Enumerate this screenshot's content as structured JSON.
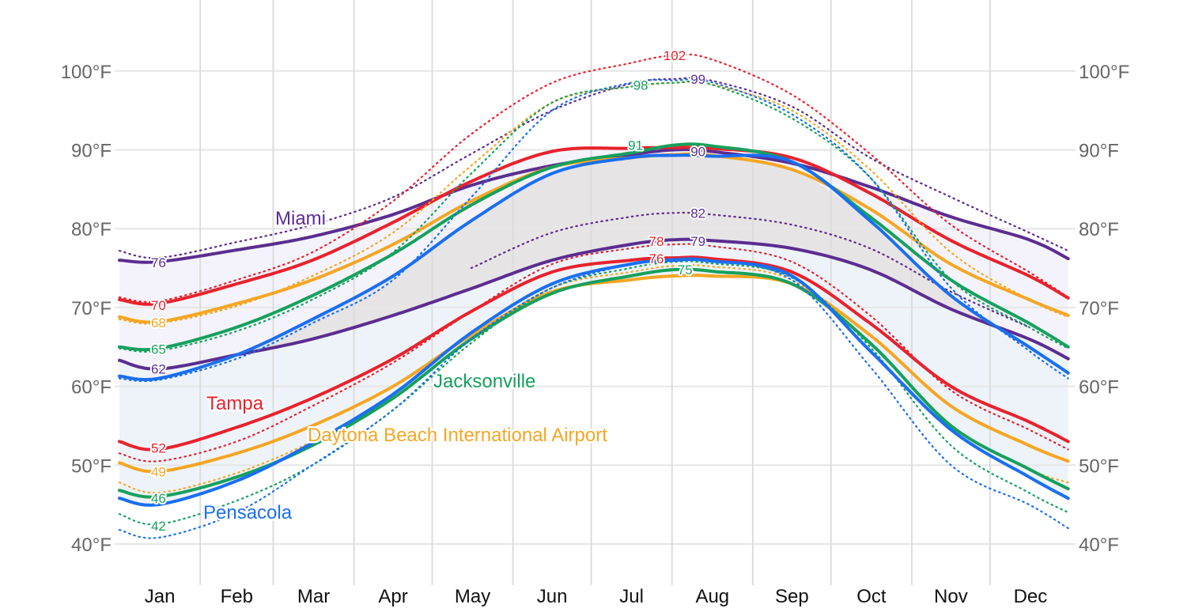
{
  "chart_data": {
    "type": "line",
    "title": "",
    "xlabel": "",
    "ylabel": "",
    "ylim": [
      40,
      100
    ],
    "y_unit": "°F",
    "yticks": [
      "40°F",
      "50°F",
      "60°F",
      "70°F",
      "80°F",
      "90°F",
      "100°F"
    ],
    "ytick_values": [
      40,
      50,
      60,
      70,
      80,
      90,
      100
    ],
    "months": [
      "Jan",
      "Feb",
      "Mar",
      "Apr",
      "May",
      "Jun",
      "Jul",
      "Aug",
      "Sep",
      "Oct",
      "Nov",
      "Dec"
    ],
    "grid": true,
    "legend": "inline labels",
    "x_sample_days": [
      0,
      15,
      45,
      74,
      105,
      135,
      166,
      196,
      213,
      227,
      258,
      288,
      319,
      349,
      364
    ],
    "series": [
      {
        "name": "Miami",
        "color": "#5b2d90",
        "label_text": "Miami",
        "avg_high": [
          76.0,
          75.8,
          77.3,
          79.0,
          81.8,
          85.5,
          88.0,
          89.4,
          90.0,
          89.8,
          88.3,
          85.3,
          81.5,
          78.6,
          76.2
        ],
        "avg_low": [
          63.3,
          62.2,
          64.0,
          66.0,
          69.0,
          72.4,
          76.0,
          78.0,
          78.6,
          78.5,
          77.5,
          74.8,
          69.8,
          66.0,
          63.5
        ],
        "p90_high": [
          77.2,
          76.3,
          78.3,
          80.5,
          84.0,
          89.5,
          95.0,
          98.4,
          99.0,
          98.8,
          95.5,
          89.0,
          84.0,
          79.5,
          77.2
        ],
        "p90_low": [
          null,
          null,
          null,
          null,
          null,
          75.0,
          79.5,
          81.5,
          82.0,
          81.8,
          80.5,
          77.5,
          72.0,
          67.5,
          null
        ],
        "labels": {
          "high_start": "76",
          "low_start": "62",
          "high_peak": "90",
          "low_peak": "79",
          "p90_high_peak": "99",
          "p90_low_peak": "82"
        }
      },
      {
        "name": "Tampa",
        "color": "#e8222d",
        "label_text": "Tampa",
        "avg_high": [
          71.0,
          70.5,
          73.0,
          76.0,
          80.8,
          86.0,
          89.8,
          90.2,
          90.3,
          90.2,
          89.0,
          84.5,
          78.5,
          74.0,
          71.2
        ],
        "avg_low": [
          53.0,
          52.0,
          54.8,
          58.5,
          63.5,
          69.5,
          74.5,
          76.0,
          76.3,
          76.2,
          74.5,
          68.0,
          60.0,
          55.5,
          53.0
        ],
        "p90_high": [
          71.3,
          70.8,
          73.5,
          77.0,
          83.5,
          92.0,
          98.5,
          101.0,
          102.0,
          101.5,
          97.0,
          89.5,
          80.5,
          74.5,
          71.3
        ],
        "p10_low": [
          51.5,
          50.5,
          53.0,
          57.5,
          63.0,
          69.5,
          75.5,
          77.5,
          78.0,
          77.8,
          75.8,
          69.0,
          59.5,
          54.5,
          52.0
        ],
        "labels": {
          "high_start": "70",
          "low_start": "52",
          "p90_high_peak": "102",
          "low_peak": "78",
          "low_peak2": "76"
        }
      },
      {
        "name": "Daytona Beach International Airport",
        "color": "#f5a623",
        "label_text": "Daytona Beach International Airport",
        "avg_high": [
          68.8,
          68.2,
          70.5,
          73.5,
          78.0,
          83.5,
          87.8,
          89.0,
          89.4,
          89.3,
          87.5,
          82.5,
          75.5,
          71.0,
          69.0
        ],
        "avg_low": [
          50.3,
          49.2,
          51.5,
          55.0,
          60.0,
          66.5,
          72.0,
          73.5,
          74.0,
          74.0,
          73.0,
          66.5,
          57.5,
          52.5,
          50.5
        ],
        "p90_high": [
          68.5,
          68.0,
          70.2,
          74.0,
          79.5,
          88.0,
          96.0,
          98.0,
          98.5,
          98.3,
          95.0,
          87.5,
          77.0,
          71.0,
          68.8
        ],
        "p10_low": [
          47.8,
          46.5,
          49.0,
          53.0,
          58.5,
          66.0,
          72.5,
          74.5,
          75.3,
          75.2,
          73.5,
          65.5,
          55.0,
          49.5,
          47.8
        ],
        "labels": {
          "high_start": "68",
          "low_start": "49"
        }
      },
      {
        "name": "Jacksonville",
        "color": "#16a05d",
        "label_text": "Jacksonville",
        "avg_high": [
          65.0,
          64.8,
          67.5,
          71.5,
          76.8,
          83.0,
          87.8,
          89.6,
          90.6,
          90.5,
          88.5,
          81.5,
          73.5,
          68.0,
          65.0
        ],
        "avg_low": [
          46.8,
          46.0,
          48.5,
          52.5,
          58.5,
          66.0,
          71.8,
          74.0,
          74.8,
          74.6,
          73.0,
          65.5,
          55.0,
          49.5,
          47.0
        ],
        "p90_high": [
          64.8,
          64.5,
          67.0,
          71.0,
          77.0,
          87.0,
          96.0,
          98.0,
          98.5,
          98.3,
          94.0,
          86.5,
          73.5,
          67.5,
          64.8
        ],
        "p10_low": [
          43.8,
          42.5,
          45.5,
          50.0,
          57.0,
          65.5,
          72.5,
          75.0,
          75.8,
          75.6,
          73.8,
          65.0,
          52.5,
          46.5,
          44.0
        ],
        "labels": {
          "high_start": "65",
          "low_start": "46",
          "p10_low_start": "42",
          "high_peak": "91",
          "low_peak": "75",
          "p90_high_peak": "98"
        }
      },
      {
        "name": "Pensacola",
        "color": "#1a6ff0",
        "label_text": "Pensacola",
        "avg_high": [
          61.3,
          61.0,
          64.0,
          68.5,
          74.0,
          81.0,
          87.0,
          89.0,
          89.3,
          89.2,
          88.5,
          81.0,
          71.5,
          65.0,
          61.7
        ],
        "avg_low": [
          45.8,
          45.0,
          48.0,
          52.8,
          59.0,
          66.8,
          73.0,
          75.5,
          76.0,
          75.9,
          74.0,
          64.5,
          54.5,
          48.5,
          45.8
        ],
        "p90_high": [
          61.0,
          60.8,
          63.5,
          68.0,
          73.5,
          84.0,
          95.0,
          98.5,
          98.8,
          98.6,
          94.5,
          86.5,
          72.5,
          64.5,
          61.0
        ],
        "p10_low": [
          41.8,
          40.8,
          44.0,
          50.0,
          57.0,
          66.0,
          72.5,
          75.5,
          76.2,
          76.0,
          73.5,
          62.5,
          50.0,
          45.0,
          42.0
        ],
        "labels": {}
      }
    ],
    "band_fill_colors": {
      "upper": "#f4f3fb",
      "mid": "#e7e4e6",
      "lower": "#eef3f9"
    }
  }
}
